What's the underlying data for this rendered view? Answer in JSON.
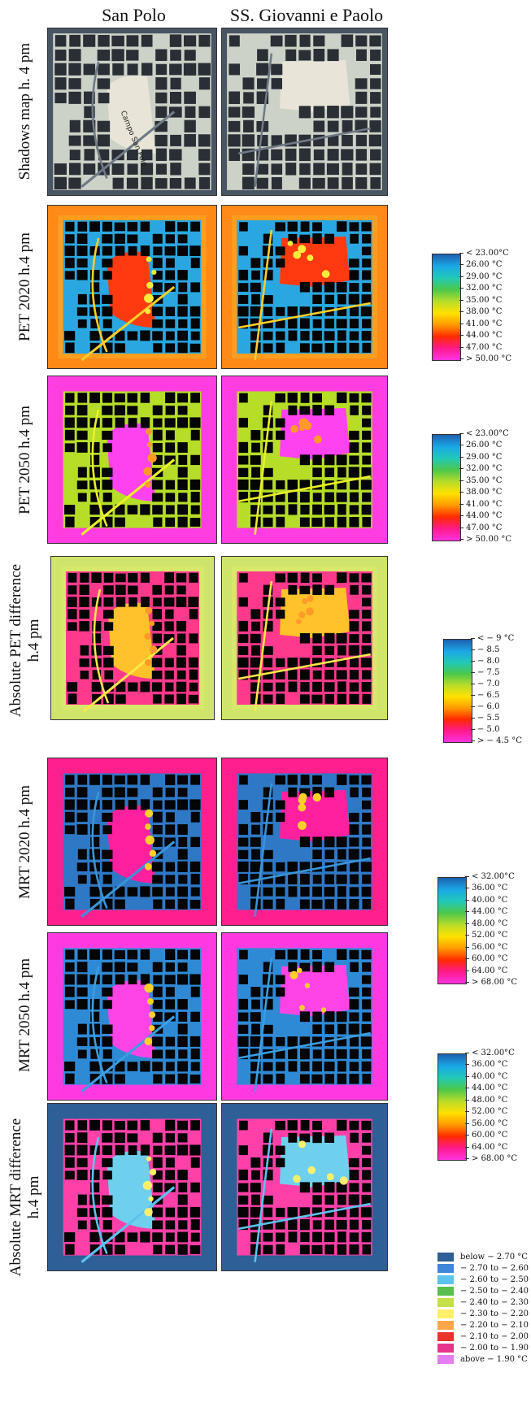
{
  "columns": [
    "San Polo",
    "SS. Giovanni e Paolo"
  ],
  "rows": [
    {
      "label": "Shadows map h. 4 pm"
    },
    {
      "label": "PET 2020 h.4 pm"
    },
    {
      "label": "PET 2050 h.4 pm"
    },
    {
      "label": "Absolute PET difference\nh.4 pm"
    },
    {
      "label": "MRT 2020 h.4 pm"
    },
    {
      "label": "MRT  2050 h.4 pm"
    },
    {
      "label": "Absolute MRT difference\nh.4 pm"
    }
  ],
  "map_text": {
    "street_label": "Campo San Polo"
  },
  "legends": {
    "pet": {
      "ticks": [
        "< 23.00°C",
        "26.00 °C",
        "29.00 °C",
        "32.00 °C",
        "35.00 °C",
        "38.00 °C",
        "41.00 °C",
        "44.00 °C",
        "47.00 °C",
        "> 50.00 °C"
      ],
      "colors": [
        "#1f5fae",
        "#1aa7e6",
        "#22c9b8",
        "#4cc84a",
        "#b8dc2a",
        "#ffe100",
        "#ff9a00",
        "#ff2a00",
        "#ff1a8c",
        "#ff33e0"
      ]
    },
    "pet_diff": {
      "ticks": [
        "< − 9 °C",
        "− 8.5",
        "− 8.0",
        "− 7.5",
        "− 7.0",
        "− 6.5",
        "− 6.0",
        "− 5.5",
        "− 5.0",
        "> − 4.5 °C"
      ],
      "colors": [
        "#1f5fae",
        "#1aa7e6",
        "#22c9b8",
        "#4cc84a",
        "#b8dc2a",
        "#ffe100",
        "#ff9a00",
        "#ff2a00",
        "#ff1a8c",
        "#ff33e0"
      ]
    },
    "mrt": {
      "ticks": [
        "< 32.00°C",
        "36.00 °C",
        "40.00 °C",
        "44.00 °C",
        "48.00 °C",
        "52.00 °C",
        "56.00 °C",
        "60.00 °C",
        "64.00 °C",
        "> 68.00 °C"
      ],
      "colors": [
        "#1f5fae",
        "#1aa7e6",
        "#22c9b8",
        "#4cc84a",
        "#b8dc2a",
        "#ffe100",
        "#ff9a00",
        "#ff2a00",
        "#ff1a8c",
        "#ff33e0"
      ]
    },
    "mrt_diff": {
      "items": [
        {
          "label": "below − 2.70 °C",
          "color": "#2e5f96"
        },
        {
          "label": "− 2.70 to − 2.60 °C",
          "color": "#3f86d8"
        },
        {
          "label": "− 2.60 to − 2.50 °C",
          "color": "#5cc3ef"
        },
        {
          "label": "− 2.50 to − 2.40 °C",
          "color": "#58bf4c"
        },
        {
          "label": "− 2.40 to − 2.30 °C",
          "color": "#c4e04a"
        },
        {
          "label": "− 2.30 to − 2.20 °C",
          "color": "#ffef6a"
        },
        {
          "label": "− 2.20 to − 2.10 °C",
          "color": "#ffa64d"
        },
        {
          "label": "− 2.10 to − 2.00 °C",
          "color": "#e8332a"
        },
        {
          "label": "− 2.00 to − 1.90 °C",
          "color": "#e8348c"
        },
        {
          "label": "above − 1.90 °C",
          "color": "#e57df0"
        }
      ]
    }
  }
}
